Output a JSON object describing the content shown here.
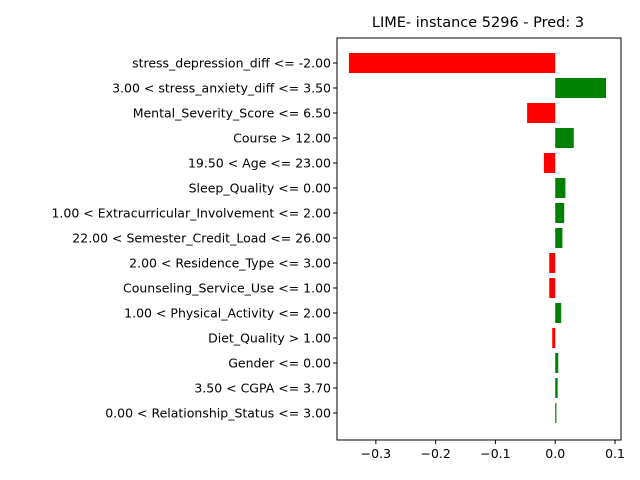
{
  "chart_data": {
    "type": "bar",
    "orientation": "horizontal",
    "title": "LIME- instance 5296 - Pred: 3",
    "xlabel": "",
    "ylabel": "",
    "xlim": [
      -0.365,
      0.11
    ],
    "xticks": [
      -0.3,
      -0.2,
      -0.1,
      0.0,
      0.1
    ],
    "xtick_labels": [
      "−0.3",
      "−0.2",
      "−0.1",
      "0.0",
      "0.1"
    ],
    "grid": false,
    "colors": {
      "positive": "#008000",
      "negative": "#ff0000"
    },
    "categories": [
      "stress_depression_diff <= -2.00",
      "3.00 < stress_anxiety_diff <= 3.50",
      "Mental_Severity_Score <= 6.50",
      "Course > 12.00",
      "19.50 < Age <= 23.00",
      "Sleep_Quality <= 0.00",
      "1.00 < Extracurricular_Involvement <= 2.00",
      "22.00 < Semester_Credit_Load <= 26.00",
      "2.00 < Residence_Type <= 3.00",
      "Counseling_Service_Use <= 1.00",
      "1.00 < Physical_Activity <= 2.00",
      "Diet_Quality > 1.00",
      "Gender <= 0.00",
      "3.50 < CGPA <= 3.70",
      "0.00 < Relationship_Status <= 3.00"
    ],
    "values": [
      -0.345,
      0.085,
      -0.047,
      0.031,
      -0.019,
      0.017,
      0.015,
      0.012,
      -0.01,
      -0.01,
      0.01,
      -0.005,
      0.005,
      0.004,
      0.002
    ]
  }
}
